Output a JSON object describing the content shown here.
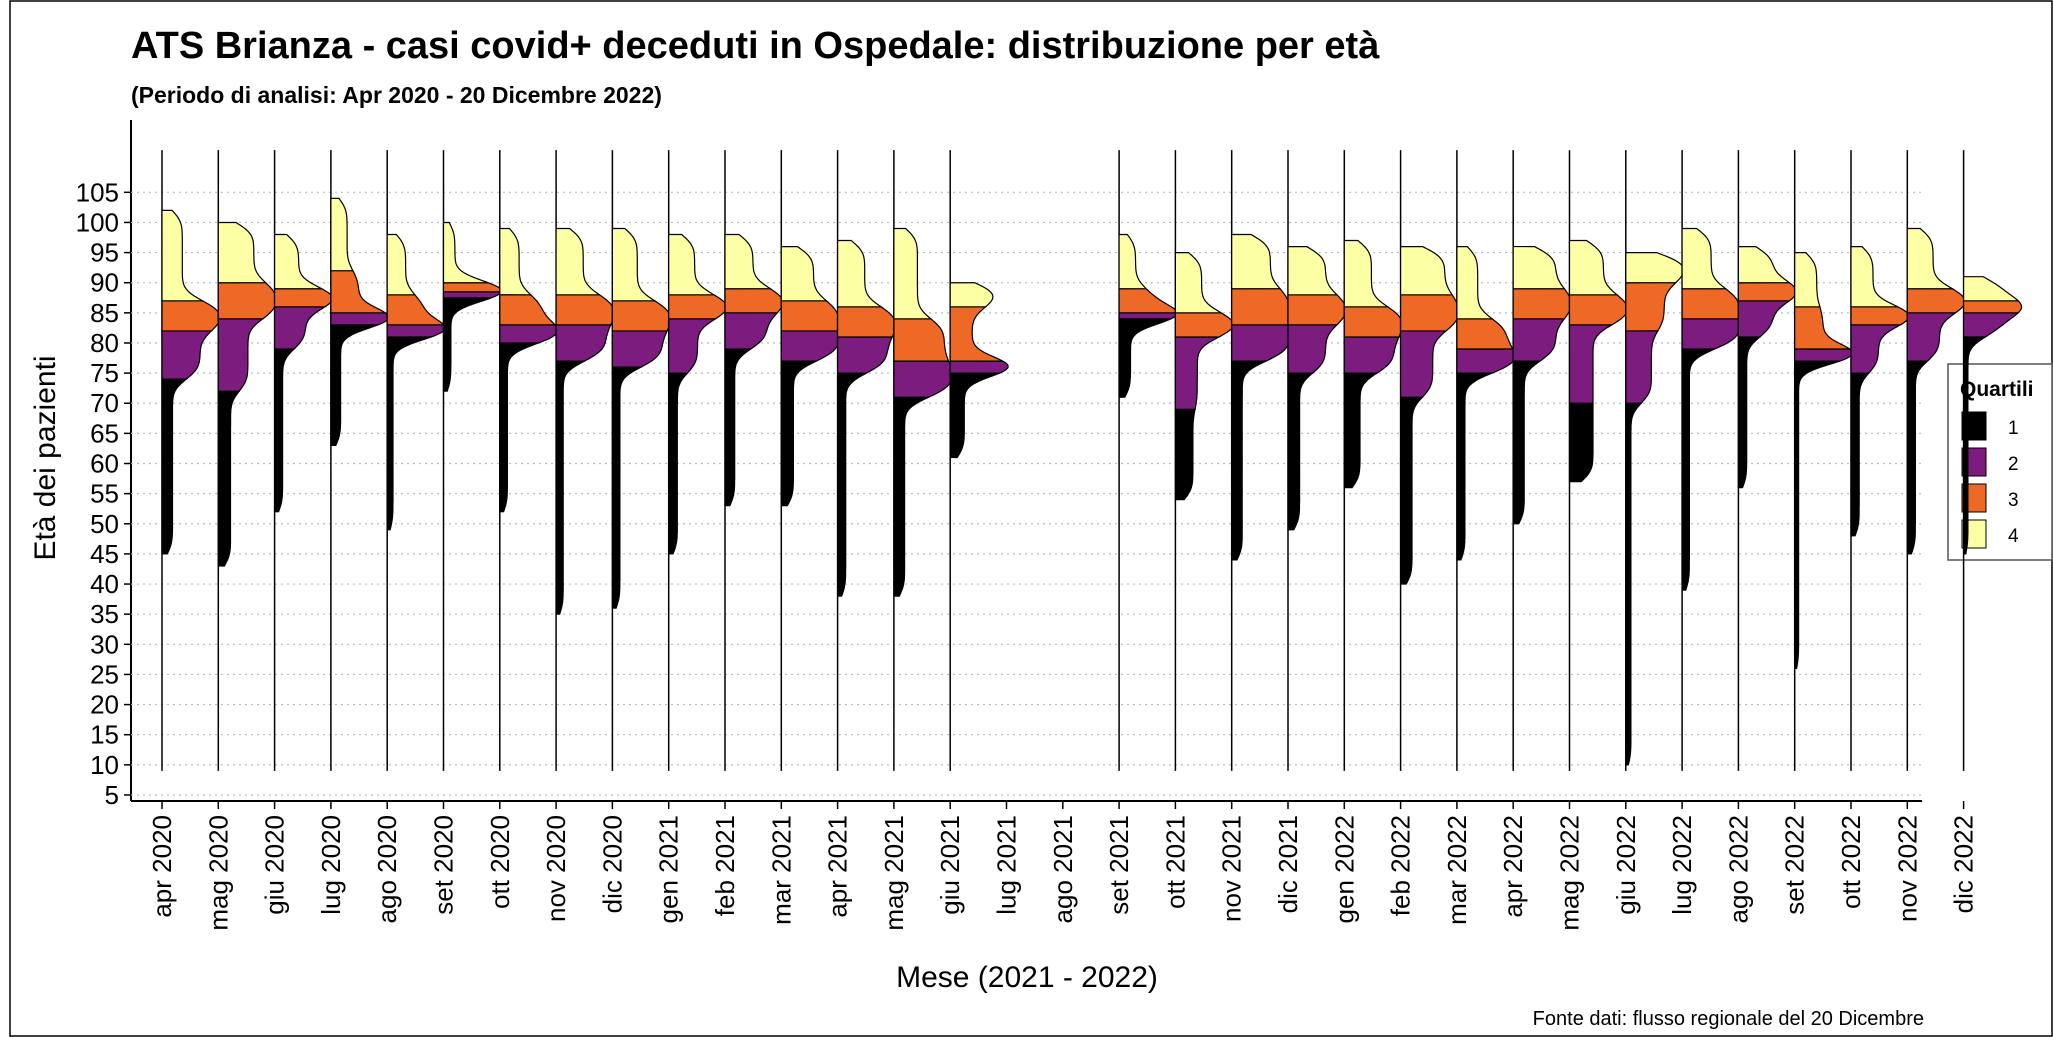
{
  "chart_data": {
    "type": "half-violin",
    "title": "ATS Brianza - casi covid+ deceduti in Ospedale: distribuzione per età",
    "subtitle": "(Periodo di analisi: Apr 2020 - 20 Dicembre 2022)",
    "x_label": "Mese (2021 - 2022)",
    "y_label": "Età dei pazienti",
    "source": "Fonte dati: flusso regionale del 20 Dicembre",
    "legend_title": "Quartili",
    "categories": [
      "apr 2020",
      "mag 2020",
      "giu 2020",
      "lug 2020",
      "ago 2020",
      "set 2020",
      "ott 2020",
      "nov 2020",
      "dic 2020",
      "gen 2021",
      "feb 2021",
      "mar 2021",
      "apr 2021",
      "mag 2021",
      "giu 2021",
      "lug 2021",
      "ago 2021",
      "set 2021",
      "ott 2021",
      "nov 2021",
      "dic 2021",
      "gen 2022",
      "feb 2022",
      "mar 2022",
      "apr 2022",
      "mag 2022",
      "giu 2022",
      "lug 2022",
      "ago 2022",
      "set 2022",
      "ott 2022",
      "nov 2022",
      "dic 2022"
    ],
    "min": [
      45,
      43,
      52,
      63,
      49,
      72,
      52,
      35,
      36,
      45,
      53,
      53,
      38,
      38,
      61,
      null,
      null,
      71,
      54,
      44,
      49,
      56,
      40,
      44,
      50,
      57,
      10,
      39,
      56,
      26,
      48,
      45,
      45
    ],
    "q1": [
      74,
      72,
      79,
      83,
      81,
      87.5,
      80,
      77,
      76,
      75,
      79,
      77,
      75,
      71,
      75,
      null,
      null,
      84,
      69,
      77,
      75,
      75,
      71,
      75,
      77,
      70,
      70,
      79,
      81,
      77,
      75,
      77,
      81
    ],
    "median": [
      82,
      84,
      86,
      85,
      83,
      88.5,
      83,
      83,
      82,
      84,
      85,
      82,
      81,
      77,
      77,
      null,
      null,
      85,
      81,
      83,
      83,
      81,
      82,
      79,
      84,
      83,
      82,
      84,
      87,
      79,
      83,
      85,
      85
    ],
    "q3": [
      87,
      90,
      89,
      92,
      88,
      90,
      88,
      88,
      87,
      88,
      89,
      87,
      86,
      84,
      86,
      null,
      null,
      89,
      85,
      89,
      88,
      86,
      88,
      84,
      89,
      88,
      90,
      89,
      90,
      86,
      86,
      89,
      87
    ],
    "max": [
      102,
      100,
      98,
      104,
      98,
      100,
      99,
      99,
      99,
      98,
      98,
      96,
      97,
      99,
      90,
      null,
      null,
      98,
      95,
      98,
      96,
      97,
      96,
      96,
      96,
      97,
      95,
      99,
      96,
      95,
      96,
      99,
      91
    ],
    "series": [
      {
        "name": "1",
        "color": "#000000"
      },
      {
        "name": "2",
        "color": "#7b1c7e"
      },
      {
        "name": "3",
        "color": "#ed6925"
      },
      {
        "name": "4",
        "color": "#fcffa4"
      }
    ],
    "ylim": [
      4,
      117
    ],
    "yticks": [
      5,
      10,
      15,
      20,
      25,
      30,
      35,
      40,
      45,
      50,
      55,
      60,
      65,
      70,
      75,
      80,
      85,
      90,
      95,
      100,
      105
    ],
    "grid": true
  }
}
